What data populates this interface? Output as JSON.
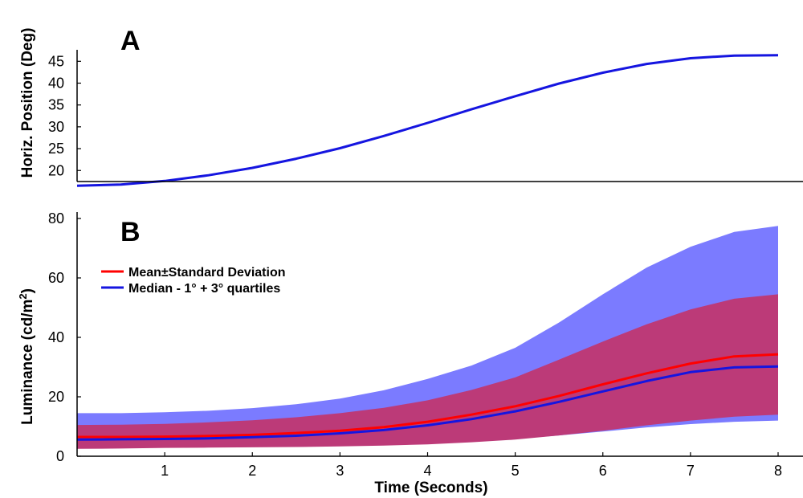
{
  "chart_data": [
    {
      "type": "line",
      "panel_label": "A",
      "ylabel": "Horiz. Position (Deg)",
      "xlabel": "",
      "xlim": [
        0,
        8.25
      ],
      "ylim": [
        16,
        48
      ],
      "yticks": [
        20,
        25,
        30,
        35,
        40,
        45
      ],
      "xticks": [],
      "grid": false,
      "series": [
        {
          "color": "#1515e0",
          "x": [
            0.0,
            0.5,
            1.0,
            1.5,
            2.0,
            2.5,
            3.0,
            3.5,
            4.0,
            4.5,
            5.0,
            5.5,
            6.0,
            6.5,
            7.0,
            7.5,
            8.0
          ],
          "values": [
            16.5,
            16.8,
            17.6,
            18.9,
            20.6,
            22.7,
            25.1,
            27.9,
            30.9,
            34.0,
            37.0,
            39.9,
            42.4,
            44.4,
            45.7,
            46.3,
            46.4
          ]
        }
      ]
    },
    {
      "type": "area",
      "panel_label": "B",
      "ylabel": "Luminance (cd/m",
      "ylabel_sup": "2",
      "ylabel_close": ")",
      "xlabel": "Time (Seconds)",
      "xlim": [
        0,
        8.25
      ],
      "ylim": [
        0,
        80
      ],
      "xticks": [
        1,
        2,
        3,
        4,
        5,
        6,
        7,
        8
      ],
      "yticks": [
        0,
        20,
        40,
        60,
        80
      ],
      "grid": false,
      "legend_position": "upper-left",
      "legend": [
        {
          "label": "Mean±Standard Deviation",
          "color": "#ff0000"
        },
        {
          "label": "Median - 1° + 3° quartiles",
          "color": "#1515e0"
        }
      ],
      "x": [
        0.0,
        0.5,
        1.0,
        1.5,
        2.0,
        2.5,
        3.0,
        3.5,
        4.0,
        4.5,
        5.0,
        5.5,
        6.0,
        6.5,
        7.0,
        7.5,
        8.0
      ],
      "bands": [
        {
          "fill": "#7b7bff",
          "lower": [
            3.0,
            3.0,
            3.0,
            3.0,
            3.1,
            3.2,
            3.4,
            3.8,
            4.3,
            5.0,
            5.8,
            7.0,
            8.3,
            9.7,
            10.8,
            11.6,
            12.0
          ],
          "upper": [
            14.5,
            14.5,
            14.8,
            15.3,
            16.2,
            17.5,
            19.4,
            22.2,
            26.0,
            30.5,
            36.5,
            45.0,
            54.5,
            63.5,
            70.5,
            75.5,
            77.5
          ]
        },
        {
          "fill": "#bc3a78",
          "lower": [
            2.5,
            2.6,
            2.8,
            2.9,
            3.0,
            3.1,
            3.3,
            3.6,
            4.0,
            4.7,
            5.6,
            7.0,
            8.6,
            10.4,
            12.0,
            13.3,
            14.0
          ],
          "upper": [
            10.5,
            10.6,
            10.9,
            11.4,
            12.1,
            13.1,
            14.5,
            16.3,
            18.8,
            22.3,
            26.5,
            32.5,
            38.6,
            44.4,
            49.4,
            53.0,
            54.5
          ]
        }
      ],
      "series": [
        {
          "name": "Mean±Standard Deviation",
          "color": "#ff0000",
          "values": [
            6.5,
            6.5,
            6.6,
            6.8,
            7.2,
            7.8,
            8.6,
            9.8,
            11.6,
            14.0,
            16.8,
            20.3,
            24.2,
            27.9,
            31.2,
            33.6,
            34.3
          ]
        },
        {
          "name": "Median - 1° + 3° quartiles",
          "color": "#1515e0",
          "values": [
            5.6,
            5.7,
            5.8,
            6.0,
            6.4,
            6.9,
            7.7,
            8.8,
            10.4,
            12.5,
            15.1,
            18.3,
            21.8,
            25.3,
            28.3,
            29.9,
            30.2
          ]
        }
      ]
    }
  ]
}
